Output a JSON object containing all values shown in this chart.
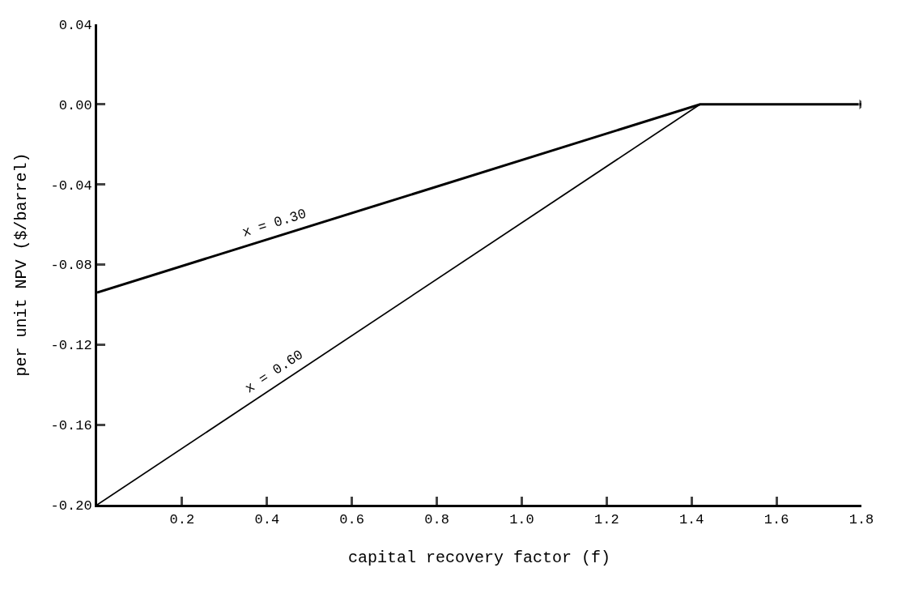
{
  "chart_data": {
    "type": "line",
    "xlabel": "capital recovery factor (f)",
    "ylabel": "per unit NPV ($/barrel)",
    "xlim": [
      0,
      1.8
    ],
    "ylim": [
      -0.2,
      0.04
    ],
    "xticks": [
      {
        "value": 0.2,
        "label": "0.2"
      },
      {
        "value": 0.4,
        "label": "0.4"
      },
      {
        "value": 0.6,
        "label": "0.6"
      },
      {
        "value": 0.8,
        "label": "0.8"
      },
      {
        "value": 1.0,
        "label": "1.0"
      },
      {
        "value": 1.2,
        "label": "1.2"
      },
      {
        "value": 1.4,
        "label": "1.4"
      },
      {
        "value": 1.6,
        "label": "1.6"
      },
      {
        "value": 1.8,
        "label": "1.8"
      }
    ],
    "yticks": [
      {
        "value": 0.04,
        "label": "0.04"
      },
      {
        "value": 0.0,
        "label": "0.00"
      },
      {
        "value": -0.04,
        "label": "-0.04"
      },
      {
        "value": -0.08,
        "label": "-0.08"
      },
      {
        "value": -0.12,
        "label": "-0.12"
      },
      {
        "value": -0.16,
        "label": "-0.16"
      },
      {
        "value": -0.2,
        "label": "-0.20"
      }
    ],
    "series": [
      {
        "name": "x = 0.30",
        "color": "#000000",
        "x": [
          0,
          1.42,
          1.8
        ],
        "values": [
          -0.094,
          0.0,
          0.0
        ]
      },
      {
        "name": "x = 0.60",
        "color": "#000000",
        "x": [
          0,
          1.42
        ],
        "values": [
          -0.2,
          0.0
        ]
      }
    ],
    "grid": false,
    "legend": false,
    "marker": "none",
    "line_style": "solid"
  }
}
